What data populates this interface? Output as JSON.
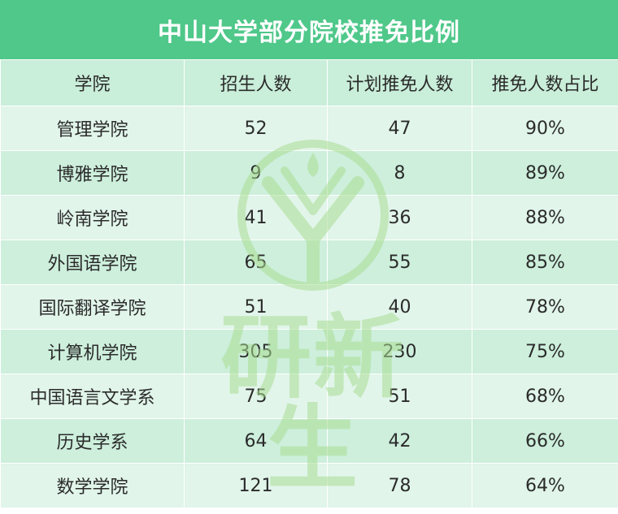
{
  "title": "中山大学部分院校推免比例",
  "table": {
    "headers": [
      "学院",
      "招生人数",
      "计划推免人数",
      "推免人数占比"
    ],
    "rows": [
      [
        "管理学院",
        "52",
        "47",
        "90%"
      ],
      [
        "博雅学院",
        "9",
        "8",
        "89%"
      ],
      [
        "岭南学院",
        "41",
        "36",
        "88%"
      ],
      [
        "外国语学院",
        "65",
        "55",
        "85%"
      ],
      [
        "国际翻译学院",
        "51",
        "40",
        "78%"
      ],
      [
        "计算机学院",
        "305",
        "230",
        "75%"
      ],
      [
        "中国语言文学系",
        "75",
        "51",
        "68%"
      ],
      [
        "历史学系",
        "64",
        "42",
        "66%"
      ],
      [
        "数学学院",
        "121",
        "78",
        "64%"
      ]
    ]
  },
  "watermark": {
    "text": "研新生",
    "logo_icon": "yan-xin-sheng-logo-icon",
    "color": "#a9dd93"
  },
  "colors": {
    "title_bg": "#4fc88a",
    "header_bg": "#c9eed9",
    "row_light": "#e1f5ea",
    "row_dark": "#cdefdc"
  }
}
